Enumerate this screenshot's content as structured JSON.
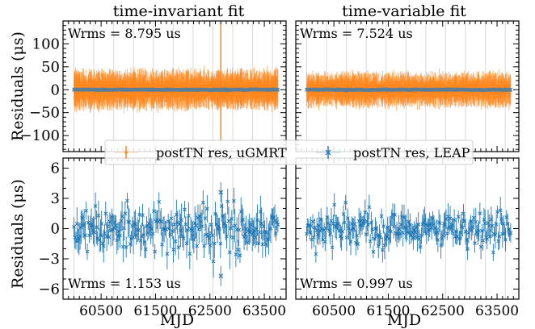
{
  "chart_data": [
    {
      "type": "scatter",
      "title": "time-invariant fit",
      "ylabel": "Residuals (μs)",
      "xlim": [
        59800,
        63900
      ],
      "ylim": [
        -135,
        150
      ],
      "yticks": [
        -100,
        -50,
        0,
        50,
        100
      ],
      "ytick_labels": [
        "−100",
        "−50",
        "0",
        "50",
        "100"
      ],
      "annotation": "Wrms = 8.795 us",
      "grid": "vertical",
      "series": [
        {
          "name": "postTN res, uGMRT",
          "color": "#ff7f0e",
          "marker": "errorbar",
          "x_range": [
            60000,
            63750
          ],
          "typical_error": 35,
          "spike": {
            "x": 62700,
            "y_range": [
              -120,
              145
            ]
          }
        },
        {
          "name": "postTN res, LEAP",
          "color": "#1f77b4",
          "marker": "x",
          "x_range": [
            60000,
            63750
          ],
          "y": 0
        }
      ]
    },
    {
      "type": "scatter",
      "title": "time-variable fit",
      "xlim": [
        59800,
        63900
      ],
      "ylim": [
        -135,
        150
      ],
      "annotation": "Wrms = 7.524 us",
      "grid": "vertical",
      "series": [
        {
          "name": "postTN res, uGMRT",
          "color": "#ff7f0e",
          "marker": "errorbar",
          "x_range": [
            60000,
            63750
          ],
          "typical_error": 30
        },
        {
          "name": "postTN res, LEAP",
          "color": "#1f77b4",
          "marker": "x",
          "x_range": [
            60000,
            63750
          ],
          "y": 0
        }
      ]
    },
    {
      "type": "scatter",
      "xlabel": "MJD",
      "ylabel": "Residuals (μs)",
      "xlim": [
        59800,
        63900
      ],
      "ylim": [
        -7,
        7
      ],
      "yticks": [
        -6,
        -3,
        0,
        3,
        6
      ],
      "ytick_labels": [
        "−6",
        "−3",
        "0",
        "3",
        "6"
      ],
      "xticks": [
        60500,
        61500,
        62500,
        63500
      ],
      "xtick_labels": [
        "60500",
        "61500",
        "62500",
        "63500"
      ],
      "annotation": "Wrms = 1.153 us",
      "grid": "vertical",
      "series": [
        {
          "name": "postTN res, LEAP",
          "color": "#1f77b4",
          "marker": "x",
          "x_range": [
            60000,
            63750
          ],
          "typical_error": 1.2,
          "outliers": [
            [
              62700,
              3.6
            ],
            [
              62700,
              -4.7
            ]
          ]
        }
      ]
    },
    {
      "type": "scatter",
      "xlabel": "MJD",
      "xlim": [
        59800,
        63900
      ],
      "ylim": [
        -7,
        7
      ],
      "xticks": [
        60500,
        61500,
        62500,
        63500
      ],
      "xtick_labels": [
        "60500",
        "61500",
        "62500",
        "63500"
      ],
      "annotation": "Wrms = 0.997 us",
      "grid": "vertical",
      "series": [
        {
          "name": "postTN res, LEAP",
          "color": "#1f77b4",
          "marker": "x",
          "x_range": [
            60000,
            63750
          ],
          "typical_error": 1.0
        }
      ]
    }
  ],
  "legend": [
    {
      "label": "postTN res, uGMRT",
      "color": "#ff7f0e"
    },
    {
      "label": "postTN res, LEAP",
      "color": "#1f77b4"
    }
  ]
}
